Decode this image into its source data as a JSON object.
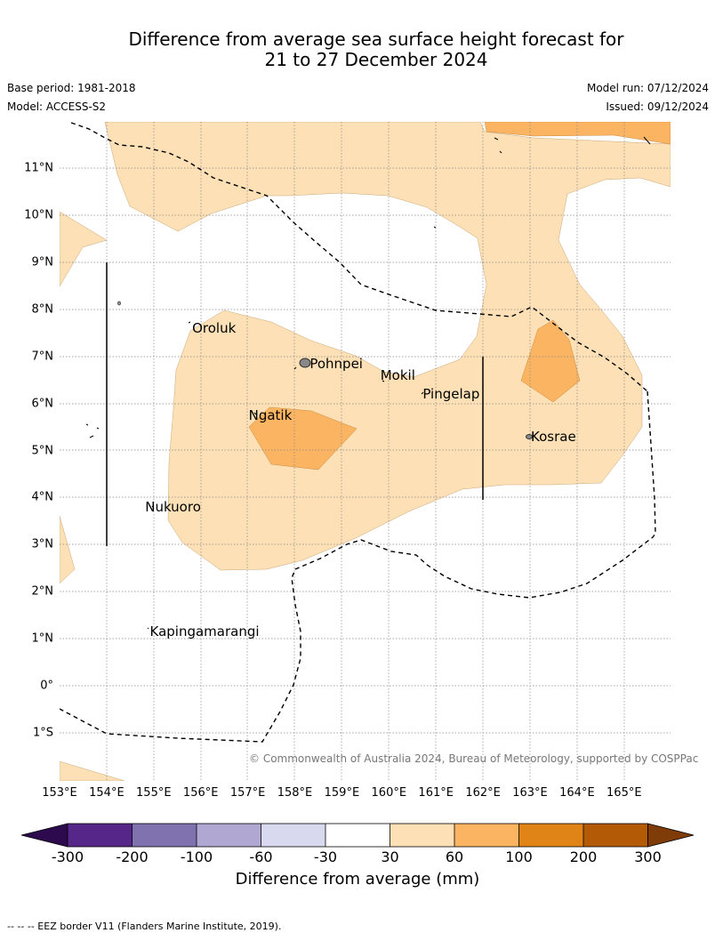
{
  "title_line1": "Difference from average sea surface height forecast for",
  "title_line2": "21 to 27 December 2024",
  "base_period": "Base period: 1981-2018",
  "model": "Model: ACCESS-S2",
  "model_run": "Model run: 07/12/2024",
  "issued": "Issued: 09/12/2024",
  "copyright": "© Commonwealth of Australia 2024, Bureau of Meteorology, supported by COSPPac",
  "eez_note": "--  --  -- EEZ border V11 (Flanders Marine Institute, 2019).",
  "lon_labels": [
    "153°E",
    "154°E",
    "155°E",
    "156°E",
    "157°E",
    "158°E",
    "159°E",
    "160°E",
    "161°E",
    "162°E",
    "163°E",
    "164°E",
    "165°E"
  ],
  "lat_labels": [
    "11°N",
    "10°N",
    "9°N",
    "8°N",
    "7°N",
    "6°N",
    "5°N",
    "4°N",
    "3°N",
    "2°N",
    "1°N",
    "0°",
    "1°S"
  ],
  "places": [
    {
      "name": "Oroluk",
      "lon": 155.8,
      "lat": 7.6
    },
    {
      "name": "Pohnpei",
      "lon": 158.3,
      "lat": 6.85
    },
    {
      "name": "Mokil",
      "lon": 159.8,
      "lat": 6.6
    },
    {
      "name": "Pingelap",
      "lon": 160.7,
      "lat": 6.2
    },
    {
      "name": "Ngatik",
      "lon": 157.0,
      "lat": 5.75
    },
    {
      "name": "Kosrae",
      "lon": 163.0,
      "lat": 5.3
    },
    {
      "name": "Nukuoro",
      "lon": 154.8,
      "lat": 3.8
    },
    {
      "name": "Kapingamarangi",
      "lon": 154.9,
      "lat": 1.15
    }
  ],
  "colorbar": {
    "label": "Difference from average (mm)",
    "ticks": [
      "-300",
      "-200",
      "-100",
      "-60",
      "-30",
      "30",
      "60",
      "100",
      "200",
      "300"
    ],
    "colors": [
      "#562788",
      "#8072af",
      "#b0a8d2",
      "#d8d9ee",
      "#ffffff",
      "#fde0b5",
      "#fbb562",
      "#e08418",
      "#b35a07"
    ],
    "under_color": "#2d0a4e",
    "over_color": "#7f3b08"
  },
  "colors": {
    "light_orange": "#fde0b5",
    "medium_orange": "#fbb562",
    "grid": "#888888"
  }
}
